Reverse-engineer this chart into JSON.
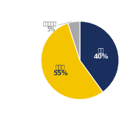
{
  "slices": [
    {
      "label": "いた",
      "pct_label": "40%",
      "value": 40,
      "color": "#1b2f5e",
      "text_color": "#ffffff",
      "label_inside": true
    },
    {
      "label": "いない",
      "pct_label": "55%",
      "value": 55,
      "color": "#f5c400",
      "text_color": "#1b2f5e",
      "label_inside": true
    },
    {
      "label": "わからない",
      "pct_label": "5%",
      "value": 5,
      "color": "#a8a8a8",
      "text_color": "#555555",
      "label_inside": false
    }
  ],
  "startangle": 90,
  "background_color": "#ffffff"
}
